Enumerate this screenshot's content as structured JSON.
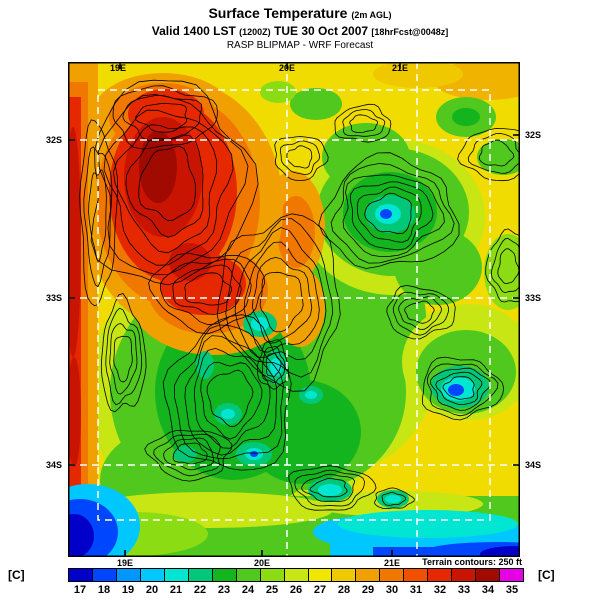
{
  "header": {
    "title": "Surface Temperature",
    "title_suffix": "(2m AGL)",
    "valid_line": {
      "prefix": "Valid 1400 LST",
      "zulu": "(1200Z)",
      "date": "TUE 30 Oct 2007",
      "forecast": "[18hrFcst@0048z]"
    },
    "model": "RASP BLIPMAP - WRF Forecast"
  },
  "map": {
    "lon_labels_top": [
      "19E",
      "20E",
      "21E"
    ],
    "lon_labels_bottom": [
      "19E",
      "20E",
      "21E"
    ],
    "lat_labels_left": [
      "32S",
      "33S",
      "34S"
    ],
    "lat_labels_right": [
      "32S",
      "33S",
      "34S"
    ],
    "terrain_note": "Terrain contours: 250 ft"
  },
  "colorbar": {
    "unit_left": "[C]",
    "unit_right": "[C]",
    "ticks": [
      "17",
      "18",
      "19",
      "20",
      "21",
      "22",
      "23",
      "24",
      "25",
      "26",
      "27",
      "28",
      "29",
      "30",
      "31",
      "32",
      "33",
      "34",
      "35"
    ],
    "colors": [
      "#0000C8",
      "#0046FF",
      "#0096FF",
      "#00C8FF",
      "#00E6D2",
      "#00C878",
      "#14B41E",
      "#50C81E",
      "#8CDC14",
      "#C8E614",
      "#F0E600",
      "#F0C800",
      "#F0A000",
      "#F07800",
      "#F05000",
      "#E62800",
      "#C81400",
      "#A00A00",
      "#E600E6"
    ]
  }
}
